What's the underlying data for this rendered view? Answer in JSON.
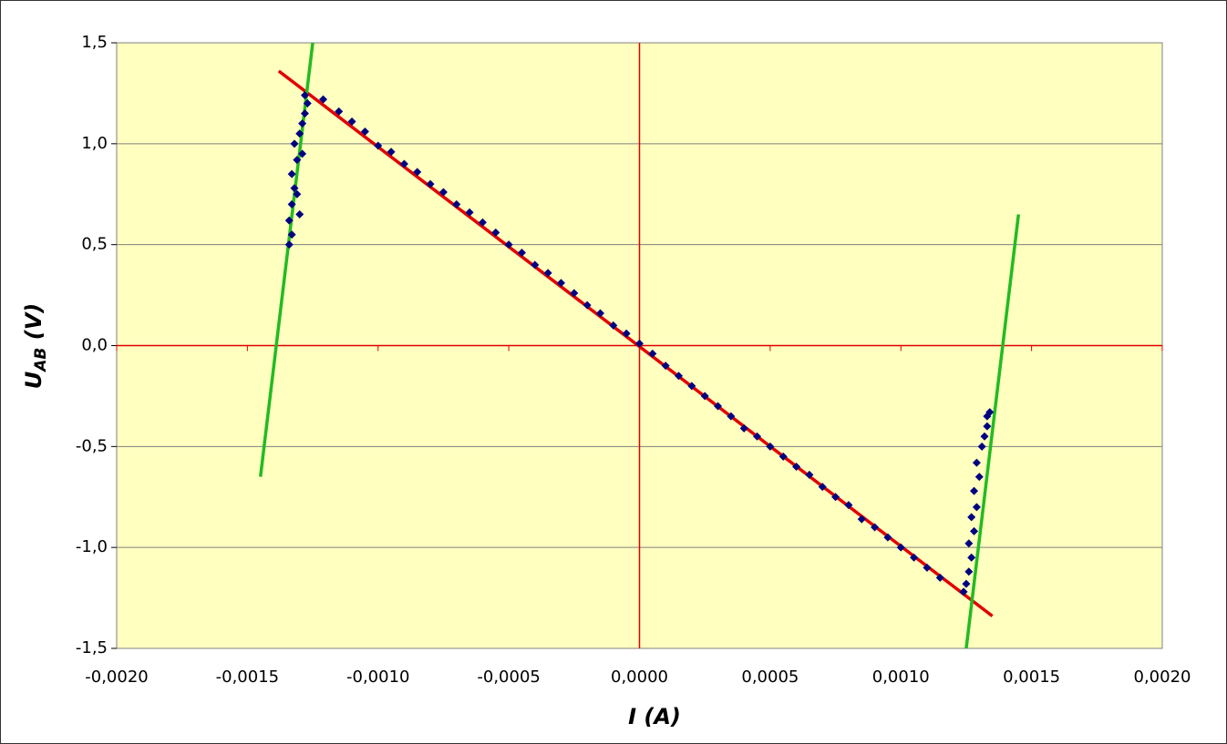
{
  "chart_data": {
    "type": "scatter",
    "xlabel": {
      "main": "I",
      "unit": "(A)"
    },
    "ylabel": {
      "main": "U",
      "sub": "AB",
      "unit": "(V)"
    },
    "xlim": [
      -0.002,
      0.002
    ],
    "ylim": [
      -1.5,
      1.5
    ],
    "xticks": [
      {
        "value": -0.002,
        "label": "-0,0020"
      },
      {
        "value": -0.0015,
        "label": "-0,0015"
      },
      {
        "value": -0.001,
        "label": "-0,0010"
      },
      {
        "value": -0.0005,
        "label": "-0,0005"
      },
      {
        "value": 0,
        "label": "0,0000"
      },
      {
        "value": 0.0005,
        "label": "0,0005"
      },
      {
        "value": 0.001,
        "label": "0,0010"
      },
      {
        "value": 0.0015,
        "label": "0,0015"
      },
      {
        "value": 0.002,
        "label": "0,0020"
      }
    ],
    "yticks": [
      {
        "value": -1.5,
        "label": "-1,5"
      },
      {
        "value": -1,
        "label": "-1,0"
      },
      {
        "value": -0.5,
        "label": "-0,5"
      },
      {
        "value": 0,
        "label": "0,0"
      },
      {
        "value": 0.5,
        "label": "0,5"
      },
      {
        "value": 1,
        "label": "1,0"
      },
      {
        "value": 1.5,
        "label": "1,5"
      }
    ],
    "grid": true,
    "plot_background": "#ffffc0",
    "zero_axis_color": "#e00000",
    "series": [
      {
        "style": "markers",
        "color": "#000080",
        "x": [
          -0.00121,
          -0.00115,
          -0.0011,
          -0.00105,
          -0.001,
          -0.00095,
          -0.0009,
          -0.00085,
          -0.0008,
          -0.00075,
          -0.0007,
          -0.00065,
          -0.0006,
          -0.00055,
          -0.0005,
          -0.00045,
          -0.0004,
          -0.00035,
          -0.0003,
          -0.00025,
          -0.0002,
          -0.00015,
          -0.0001,
          -5e-05,
          0,
          5e-05,
          0.0001,
          0.00015,
          0.0002,
          0.00025,
          0.0003,
          0.00035,
          0.0004,
          0.00045,
          0.0005,
          0.00055,
          0.0006,
          0.00065,
          0.0007,
          0.00075,
          0.0008,
          0.00085,
          0.0009,
          0.00095,
          0.001,
          0.00105,
          0.0011,
          0.00115
        ],
        "values": [
          1.22,
          1.16,
          1.11,
          1.06,
          0.99,
          0.96,
          0.9,
          0.86,
          0.8,
          0.76,
          0.7,
          0.66,
          0.61,
          0.56,
          0.5,
          0.46,
          0.4,
          0.36,
          0.31,
          0.26,
          0.2,
          0.16,
          0.1,
          0.06,
          0.01,
          -0.04,
          -0.1,
          -0.15,
          -0.2,
          -0.25,
          -0.3,
          -0.35,
          -0.41,
          -0.45,
          -0.5,
          -0.55,
          -0.6,
          -0.64,
          -0.7,
          -0.75,
          -0.79,
          -0.86,
          -0.9,
          -0.95,
          -1.0,
          -1.05,
          -1.1,
          -1.15
        ]
      },
      {
        "style": "markers",
        "color": "#000080",
        "x": [
          -0.00134,
          -0.00133,
          -0.00134,
          -0.00133,
          -0.00132,
          -0.00133,
          -0.00131,
          -0.00132,
          -0.0013,
          -0.00129,
          -0.00128,
          -0.00127,
          -0.00128,
          -0.0013,
          -0.00131,
          -0.00129
        ],
        "values": [
          0.5,
          0.55,
          0.62,
          0.7,
          0.78,
          0.85,
          0.92,
          1.0,
          1.05,
          1.1,
          1.15,
          1.2,
          1.24,
          0.65,
          0.75,
          0.95
        ]
      },
      {
        "style": "markers",
        "color": "#000080",
        "x": [
          0.00124,
          0.00125,
          0.00126,
          0.00127,
          0.00126,
          0.00128,
          0.00127,
          0.00129,
          0.00128,
          0.0013,
          0.00129,
          0.00131,
          0.00132,
          0.00133,
          0.00133,
          0.00134
        ],
        "values": [
          -1.22,
          -1.18,
          -1.12,
          -1.05,
          -0.98,
          -0.92,
          -0.85,
          -0.8,
          -0.72,
          -0.65,
          -0.58,
          -0.5,
          -0.45,
          -0.4,
          -0.35,
          -0.33
        ]
      },
      {
        "style": "line",
        "color": "#e00000",
        "x": [
          -0.00138,
          0.00135
        ],
        "values": [
          1.36,
          -1.34
        ]
      },
      {
        "style": "line",
        "color": "#22bb22",
        "x": [
          -0.00145,
          -0.00125
        ],
        "values": [
          -0.65,
          1.5
        ]
      },
      {
        "style": "line",
        "color": "#22bb22",
        "x": [
          0.00125,
          0.00145
        ],
        "values": [
          -1.5,
          0.65
        ]
      }
    ]
  }
}
